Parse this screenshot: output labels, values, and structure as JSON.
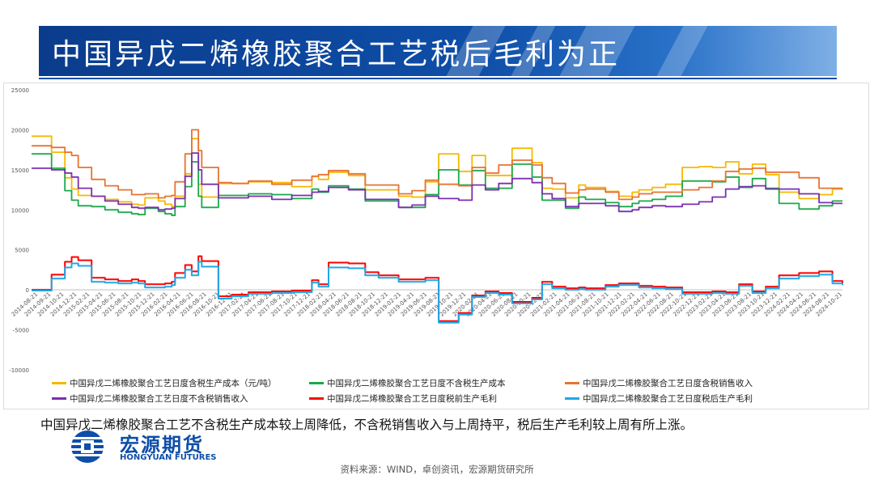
{
  "header": {
    "title": "中国异戊二烯橡胶聚合工艺税后毛利为正"
  },
  "summary": "中国异戊二烯橡胶聚合工艺不含税生产成本较上周降低，不含税销售收入与上周持平，税后生产毛利较上周有所上涨。",
  "logo": {
    "name_cn": "宏源期货",
    "name_en": "HONGYUAN FUTURES",
    "icon": "hongyuan-logo-icon"
  },
  "source": "资料来源：WIND，卓创资讯，宏源期货研究所",
  "colors": {
    "banner": "#0e4ea8",
    "cost_tax": "#f5b800",
    "cost_notax": "#1aa84a",
    "rev_tax": "#e67332",
    "rev_notax": "#7b2fb0",
    "margin_pre": "#ff0000",
    "margin_post": "#1ea7e8"
  },
  "chart_data": {
    "type": "line",
    "title": "",
    "xlabel": "",
    "ylabel": "",
    "ylim": [
      -10000,
      25000
    ],
    "yticks": [
      "25000",
      "20000",
      "15000",
      "10000",
      "5000",
      "0",
      "-5000",
      "-10000"
    ],
    "xticks": [
      "2014-08-21",
      "2014-09-21",
      "2014-10-21",
      "2014-12-21",
      "2015-02-21",
      "2015-04-21",
      "2015-06-21",
      "2015-08-21",
      "2015-10-21",
      "2015-12-21",
      "2016-02-21",
      "2016-04-21",
      "2016-06-21",
      "2016-08-21",
      "2016-10-21",
      "2016-12-21",
      "2017-02-21",
      "2017-04-21",
      "2017-06-21",
      "2017-08-21",
      "2017-10-21",
      "2017-12-21",
      "2018-02-21",
      "2018-04-21",
      "2018-06-21",
      "2018-08-21",
      "2018-10-21",
      "2018-12-21",
      "2019-02-21",
      "2019-04-21",
      "2019-06-21",
      "2019-08-21",
      "2019-10-21",
      "2019-12-21",
      "2020-02-21",
      "2020-04-21",
      "2020-06-21",
      "2020-08-21",
      "2020-10-21",
      "2020-12-21",
      "2021-02-21",
      "2021-04-21",
      "2021-06-21",
      "2021-08-21",
      "2021-10-21",
      "2021-12-21",
      "2022-02-21",
      "2022-04-21",
      "2022-06-21",
      "2022-08-21",
      "2022-10-21",
      "2022-12-21",
      "2023-02-21",
      "2023-04-21",
      "2023-06-21",
      "2023-08-21",
      "2023-10-21",
      "2023-12-21",
      "2024-02-21",
      "2024-04-21",
      "2024-06-21",
      "2024-08-21",
      "2024-10-21"
    ],
    "grid": false,
    "legend_position": "bottom",
    "x_months": [
      0,
      6,
      10,
      12,
      14,
      18,
      22,
      26,
      30,
      32,
      34,
      38,
      40,
      42,
      43,
      46,
      48,
      50,
      51,
      56,
      60,
      65,
      72,
      78,
      84,
      86,
      89,
      95,
      100,
      104,
      110,
      114,
      118,
      122,
      128,
      132,
      136,
      140,
      144,
      150,
      153,
      156,
      160,
      164,
      166,
      172,
      176,
      180,
      182,
      186,
      190,
      195,
      200,
      204,
      208,
      212,
      216,
      220,
      224,
      230,
      236,
      240,
      243
    ],
    "series": [
      {
        "name": "中国异戊二烯橡胶聚合工艺日度含税生产成本（元/吨）",
        "values": [
          19200,
          17200,
          14000,
          12600,
          11800,
          11700,
          11300,
          11000,
          10700,
          10600,
          11500,
          11100,
          10700,
          10400,
          11700,
          14500,
          18900,
          13200,
          11600,
          13300,
          13300,
          13500,
          13400,
          12900,
          14200,
          13800,
          14700,
          14300,
          12500,
          12500,
          11700,
          11600,
          13500,
          17000,
          14800,
          16800,
          14300,
          14300,
          17700,
          15900,
          12700,
          12600,
          11500,
          13100,
          12800,
          12300,
          11700,
          12200,
          12500,
          12800,
          13200,
          15300,
          15400,
          15300,
          16000,
          14500,
          15700,
          14400,
          12200,
          11400,
          11900,
          12600,
          12500
        ]
      },
      {
        "name": "中国异戊二烯橡胶聚合工艺日度不含税生产成本",
        "values": [
          17000,
          15200,
          12400,
          11200,
          10500,
          10400,
          10000,
          9700,
          9500,
          9400,
          10200,
          9800,
          9500,
          9300,
          10400,
          12900,
          16000,
          11700,
          10300,
          11800,
          11800,
          12000,
          11900,
          11400,
          12600,
          12200,
          13000,
          12600,
          11100,
          11100,
          10300,
          10300,
          11900,
          15000,
          13100,
          14900,
          12700,
          12700,
          15700,
          14100,
          11200,
          11200,
          10200,
          11600,
          11300,
          10900,
          10400,
          10800,
          11100,
          11300,
          11700,
          13600,
          13600,
          13500,
          14100,
          12800,
          13900,
          12700,
          10800,
          10100,
          10500,
          11100,
          11100
        ]
      },
      {
        "name": "中国异戊二烯橡胶聚合工艺日度含税销售收入",
        "values": [
          18000,
          17800,
          17200,
          16800,
          15300,
          13800,
          13000,
          12500,
          11900,
          11900,
          12000,
          11500,
          11700,
          11800,
          13500,
          17000,
          20000,
          17400,
          15300,
          13400,
          13300,
          13600,
          13200,
          13700,
          14200,
          14400,
          14900,
          14500,
          13100,
          13100,
          12000,
          12400,
          13700,
          13200,
          13000,
          15300,
          14600,
          15600,
          16200,
          15600,
          14000,
          13300,
          12100,
          12500,
          12600,
          12200,
          11300,
          11600,
          12000,
          12200,
          12200,
          12500,
          12800,
          13600,
          14800,
          15100,
          15200,
          14700,
          14700,
          14000,
          12700,
          12700,
          12700
        ]
      },
      {
        "name": "中国异戊二烯橡胶聚合工艺日度不含税销售收入",
        "values": [
          15200,
          15000,
          14600,
          14100,
          12700,
          11700,
          11100,
          10700,
          10300,
          10200,
          10300,
          10000,
          10100,
          10200,
          11400,
          14200,
          17100,
          15000,
          13200,
          11500,
          11500,
          11700,
          11300,
          11800,
          12200,
          12300,
          12800,
          12500,
          11300,
          11300,
          10300,
          10600,
          11700,
          11400,
          11200,
          13100,
          12500,
          13300,
          13900,
          13400,
          12000,
          11400,
          10400,
          10800,
          10800,
          10500,
          9800,
          10000,
          10300,
          10500,
          10400,
          10700,
          11000,
          11600,
          12600,
          12900,
          13000,
          12600,
          12600,
          12000,
          10900,
          10800,
          10800
        ]
      },
      {
        "name": "中国异戊二烯橡胶聚合工艺日度税前生产毛利",
        "values": [
          0,
          1900,
          3500,
          4100,
          3700,
          1500,
          1300,
          1100,
          1300,
          1100,
          700,
          700,
          800,
          1000,
          2100,
          3100,
          2300,
          4200,
          3600,
          -800,
          -600,
          -300,
          -200,
          -100,
          1200,
          700,
          3400,
          3300,
          2200,
          1800,
          1300,
          1300,
          1500,
          -3900,
          -2900,
          -700,
          -200,
          -400,
          -1500,
          -1000,
          1000,
          400,
          200,
          300,
          200,
          600,
          800,
          800,
          500,
          400,
          300,
          -300,
          -300,
          -200,
          -300,
          700,
          -200,
          400,
          1800,
          2100,
          2300,
          1100,
          800
        ]
      },
      {
        "name": "中国异戊二烯橡胶聚合工艺日度税后生产毛利",
        "values": [
          -100,
          1400,
          2800,
          3300,
          3000,
          1000,
          900,
          800,
          900,
          800,
          300,
          300,
          400,
          600,
          1500,
          2500,
          1800,
          3500,
          2900,
          -1100,
          -800,
          -500,
          -400,
          -300,
          900,
          400,
          2800,
          2700,
          1800,
          1500,
          1000,
          1000,
          1200,
          -4100,
          -3100,
          -900,
          -400,
          -600,
          -1700,
          -1200,
          700,
          200,
          0,
          100,
          0,
          400,
          600,
          600,
          300,
          200,
          100,
          -500,
          -500,
          -400,
          -500,
          500,
          -400,
          200,
          1400,
          1700,
          1900,
          800,
          600
        ]
      }
    ]
  }
}
